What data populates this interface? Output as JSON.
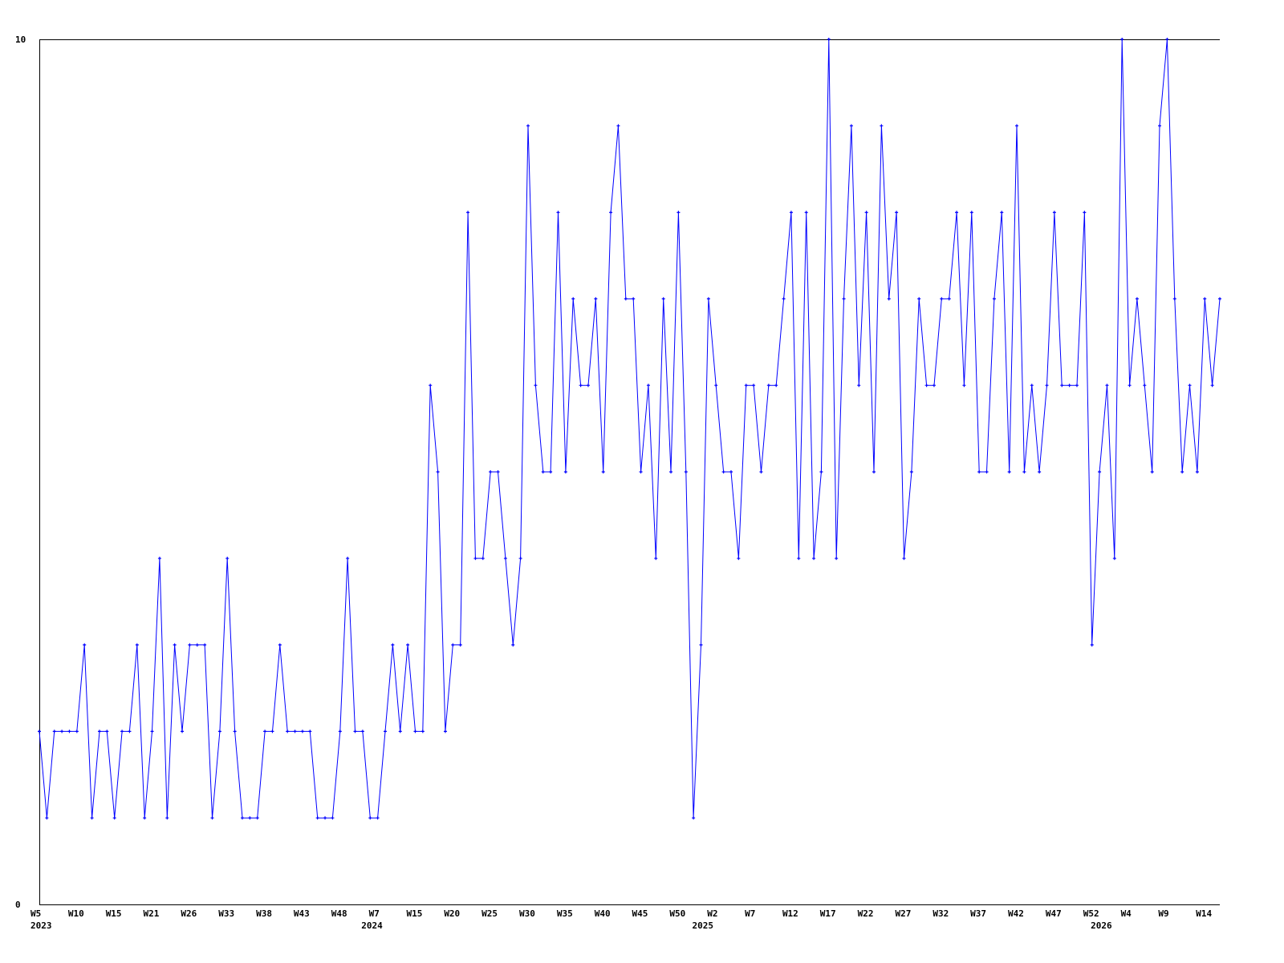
{
  "chart_data": {
    "type": "line",
    "title": "",
    "xlabel": "",
    "ylabel": "",
    "ylim": [
      0,
      10
    ],
    "y_ticks": [
      "0",
      "10"
    ],
    "grid": false,
    "line_color": "#0000ff",
    "x_tick_step": 5,
    "x_ticks": [
      "W5",
      "W10",
      "W15",
      "W21",
      "W26",
      "W33",
      "W38",
      "W43",
      "W48",
      "W7",
      "W15",
      "W20",
      "W25",
      "W30",
      "W35",
      "W40",
      "W45",
      "W50",
      "W2",
      "W7",
      "W12",
      "W17",
      "W22",
      "W27",
      "W32",
      "W37",
      "W42",
      "W47",
      "W52",
      "W4",
      "W9",
      "W14"
    ],
    "year_labels": [
      {
        "label": "2023",
        "index": 0
      },
      {
        "label": "2024",
        "index": 44
      },
      {
        "label": "2025",
        "index": 88
      },
      {
        "label": "2026",
        "index": 141
      }
    ],
    "values": [
      2,
      1,
      2,
      2,
      2,
      2,
      3,
      1,
      2,
      2,
      1,
      2,
      2,
      3,
      1,
      2,
      4,
      1,
      3,
      2,
      3,
      3,
      3,
      1,
      2,
      4,
      2,
      1,
      1,
      1,
      2,
      2,
      3,
      2,
      2,
      2,
      2,
      1,
      1,
      1,
      2,
      4,
      2,
      2,
      1,
      1,
      2,
      3,
      2,
      3,
      2,
      2,
      6,
      5,
      2,
      3,
      3,
      8,
      4,
      4,
      5,
      5,
      4,
      3,
      4,
      9,
      6,
      5,
      5,
      8,
      5,
      7,
      6,
      6,
      7,
      5,
      8,
      9,
      7,
      7,
      5,
      6,
      4,
      7,
      5,
      8,
      5,
      1,
      3,
      7,
      6,
      5,
      5,
      4,
      6,
      6,
      5,
      6,
      6,
      7,
      8,
      4,
      8,
      4,
      5,
      10,
      4,
      7,
      9,
      6,
      8,
      5,
      9,
      7,
      8,
      4,
      5,
      7,
      6,
      6,
      7,
      7,
      8,
      6,
      8,
      5,
      5,
      7,
      8,
      5,
      9,
      5,
      6,
      5,
      6,
      8,
      6,
      6,
      6,
      8,
      3,
      5,
      6,
      4,
      10,
      6,
      7,
      6,
      5,
      9,
      10,
      7,
      5,
      6,
      5,
      7,
      6,
      7
    ]
  }
}
